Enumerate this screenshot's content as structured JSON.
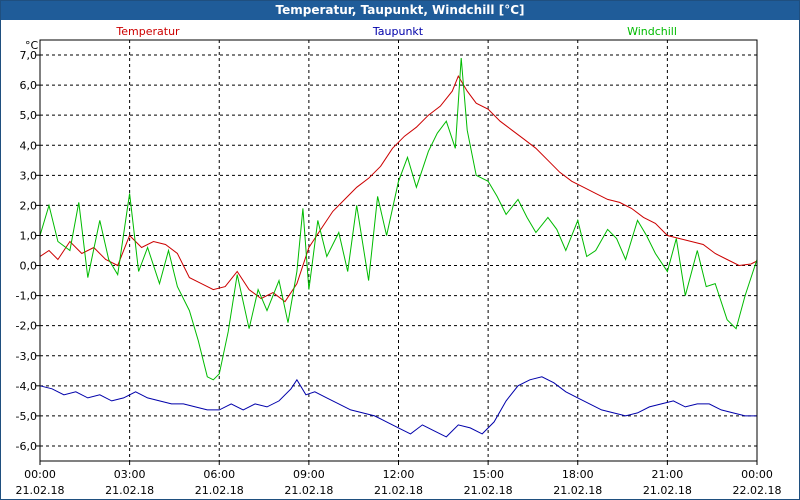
{
  "window": {
    "title": "Temperatur, Taupunkt, Windchill [°C]"
  },
  "colors": {
    "temperatur": "#cc0000",
    "taupunkt": "#0000aa",
    "windchill": "#00bb00",
    "grid": "#000000",
    "title_bg": "#1f5c99"
  },
  "chart_data": {
    "type": "line",
    "title": "Temperatur, Taupunkt, Windchill [°C]",
    "ylabel": "°C",
    "xlabel": "",
    "ylim": [
      -6.5,
      7.5
    ],
    "xlim_hours": [
      0,
      24
    ],
    "grid": true,
    "legend": {
      "placement": "top",
      "entries": [
        "Temperatur",
        "Taupunkt",
        "Windchill"
      ]
    },
    "y_ticks": [
      "7,0",
      "6,0",
      "5,0",
      "4,0",
      "3,0",
      "2,0",
      "1,0",
      "0,0",
      "-1,0",
      "-2,0",
      "-3,0",
      "-4,0",
      "-5,0",
      "-6,0"
    ],
    "y_tick_values": [
      7,
      6,
      5,
      4,
      3,
      2,
      1,
      0,
      -1,
      -2,
      -3,
      -4,
      -5,
      -6
    ],
    "x_ticks": [
      {
        "time": "00:00",
        "date": "21.02.18"
      },
      {
        "time": "03:00",
        "date": "21.02.18"
      },
      {
        "time": "06:00",
        "date": "21.02.18"
      },
      {
        "time": "09:00",
        "date": "21.02.18"
      },
      {
        "time": "12:00",
        "date": "21.02.18"
      },
      {
        "time": "15:00",
        "date": "21.02.18"
      },
      {
        "time": "18:00",
        "date": "21.02.18"
      },
      {
        "time": "21:00",
        "date": "21.02.18"
      },
      {
        "time": "00:00",
        "date": "22.02.18"
      }
    ],
    "x_tick_hours": [
      0,
      3,
      6,
      9,
      12,
      15,
      18,
      21,
      24
    ],
    "series": [
      {
        "name": "Temperatur",
        "color": "#cc0000",
        "x": [
          0,
          0.3,
          0.6,
          1,
          1.4,
          1.8,
          2.2,
          2.6,
          3,
          3.4,
          3.8,
          4.2,
          4.6,
          5,
          5.4,
          5.8,
          6.2,
          6.6,
          7,
          7.4,
          7.8,
          8.2,
          8.6,
          9,
          9.4,
          9.8,
          10.2,
          10.6,
          11,
          11.4,
          11.8,
          12.2,
          12.6,
          13,
          13.4,
          13.8,
          14,
          14.3,
          14.6,
          15,
          15.4,
          15.8,
          16.2,
          16.6,
          17,
          17.4,
          17.8,
          18.2,
          18.6,
          19,
          19.4,
          19.8,
          20.2,
          20.6,
          21,
          21.4,
          21.8,
          22.2,
          22.6,
          23,
          23.4,
          23.8,
          24
        ],
        "values": [
          0.3,
          0.5,
          0.2,
          0.8,
          0.4,
          0.6,
          0.2,
          0.0,
          1.0,
          0.6,
          0.8,
          0.7,
          0.4,
          -0.4,
          -0.6,
          -0.8,
          -0.7,
          -0.2,
          -0.8,
          -1.1,
          -0.9,
          -1.2,
          -0.6,
          0.6,
          1.2,
          1.8,
          2.2,
          2.6,
          2.9,
          3.3,
          3.9,
          4.3,
          4.6,
          5.0,
          5.3,
          5.8,
          6.3,
          5.8,
          5.4,
          5.2,
          4.8,
          4.5,
          4.2,
          3.9,
          3.5,
          3.1,
          2.8,
          2.6,
          2.4,
          2.2,
          2.1,
          1.9,
          1.6,
          1.4,
          1.0,
          0.9,
          0.8,
          0.7,
          0.4,
          0.2,
          0.0,
          0.05,
          0.15
        ]
      },
      {
        "name": "Taupunkt",
        "color": "#0000aa",
        "x": [
          0,
          0.4,
          0.8,
          1.2,
          1.6,
          2,
          2.4,
          2.8,
          3.2,
          3.6,
          4,
          4.4,
          4.8,
          5.2,
          5.6,
          6,
          6.4,
          6.8,
          7.2,
          7.6,
          8,
          8.4,
          8.6,
          8.9,
          9.2,
          9.6,
          10,
          10.4,
          10.8,
          11.2,
          11.6,
          12,
          12.4,
          12.8,
          13.2,
          13.6,
          14,
          14.4,
          14.8,
          15.2,
          15.6,
          16,
          16.4,
          16.8,
          17.2,
          17.6,
          18,
          18.4,
          18.8,
          19.2,
          19.6,
          20,
          20.4,
          20.8,
          21.2,
          21.6,
          22,
          22.4,
          22.8,
          23.2,
          23.6,
          24
        ],
        "values": [
          -4.0,
          -4.1,
          -4.3,
          -4.2,
          -4.4,
          -4.3,
          -4.5,
          -4.4,
          -4.2,
          -4.4,
          -4.5,
          -4.6,
          -4.6,
          -4.7,
          -4.8,
          -4.8,
          -4.6,
          -4.8,
          -4.6,
          -4.7,
          -4.5,
          -4.1,
          -3.8,
          -4.3,
          -4.2,
          -4.4,
          -4.6,
          -4.8,
          -4.9,
          -5.0,
          -5.2,
          -5.4,
          -5.6,
          -5.3,
          -5.5,
          -5.7,
          -5.3,
          -5.4,
          -5.6,
          -5.2,
          -4.5,
          -4.0,
          -3.8,
          -3.7,
          -3.9,
          -4.2,
          -4.4,
          -4.6,
          -4.8,
          -4.9,
          -5.0,
          -4.9,
          -4.7,
          -4.6,
          -4.5,
          -4.7,
          -4.6,
          -4.6,
          -4.8,
          -4.9,
          -5.0,
          -5.0
        ]
      },
      {
        "name": "Windchill",
        "color": "#00bb00",
        "x": [
          0,
          0.3,
          0.6,
          1,
          1.3,
          1.6,
          2,
          2.3,
          2.6,
          3,
          3.3,
          3.6,
          4,
          4.3,
          4.6,
          5,
          5.3,
          5.6,
          5.8,
          6,
          6.3,
          6.6,
          7,
          7.3,
          7.6,
          8,
          8.3,
          8.6,
          8.8,
          9,
          9.3,
          9.6,
          10,
          10.3,
          10.6,
          11,
          11.3,
          11.6,
          12,
          12.3,
          12.6,
          13,
          13.3,
          13.6,
          13.9,
          14.1,
          14.3,
          14.6,
          15,
          15.3,
          15.6,
          16,
          16.3,
          16.6,
          17,
          17.3,
          17.6,
          18,
          18.3,
          18.6,
          19,
          19.3,
          19.6,
          20,
          20.3,
          20.6,
          21,
          21.3,
          21.6,
          22,
          22.3,
          22.6,
          23,
          23.3,
          23.6,
          24
        ],
        "values": [
          1.0,
          2.0,
          0.8,
          0.5,
          2.1,
          -0.4,
          1.5,
          0.2,
          -0.3,
          2.4,
          -0.2,
          0.6,
          -0.6,
          0.5,
          -0.7,
          -1.5,
          -2.5,
          -3.7,
          -3.8,
          -3.6,
          -2.2,
          -0.3,
          -2.1,
          -0.8,
          -1.5,
          -0.5,
          -1.9,
          -0.2,
          1.9,
          -0.8,
          1.5,
          0.3,
          1.1,
          -0.2,
          2.0,
          -0.5,
          2.3,
          1.0,
          2.8,
          3.6,
          2.6,
          3.8,
          4.4,
          4.8,
          3.9,
          6.9,
          4.5,
          3.0,
          2.8,
          2.3,
          1.7,
          2.2,
          1.6,
          1.1,
          1.6,
          1.2,
          0.5,
          1.5,
          0.3,
          0.5,
          1.2,
          0.9,
          0.2,
          1.5,
          1.0,
          0.4,
          -0.2,
          0.9,
          -1.0,
          0.5,
          -0.7,
          -0.6,
          -1.8,
          -2.1,
          -1.0,
          0.2
        ]
      }
    ]
  }
}
